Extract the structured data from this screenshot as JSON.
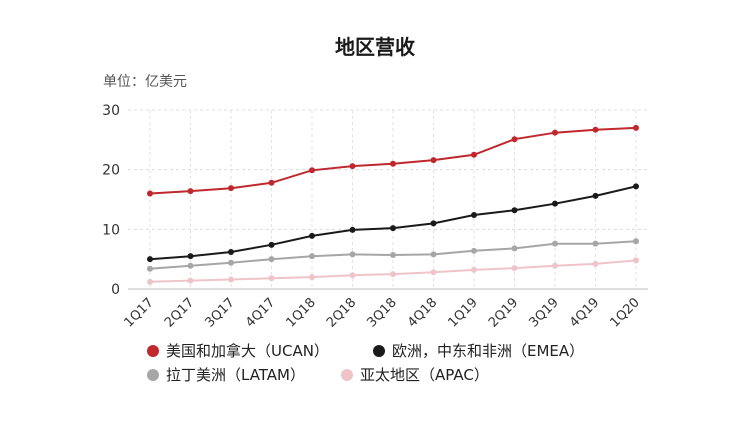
{
  "chart_data": {
    "type": "line",
    "title": "地区营收",
    "unit_label": "单位：亿美元",
    "xlabel": "",
    "ylabel": "",
    "ylim": [
      0,
      30
    ],
    "yticks": [
      0,
      10,
      20,
      30
    ],
    "grid": true,
    "legend_position": "bottom",
    "categories": [
      "1Q17",
      "2Q17",
      "3Q17",
      "4Q17",
      "1Q18",
      "2Q18",
      "3Q18",
      "4Q18",
      "1Q19",
      "2Q19",
      "3Q19",
      "4Q19",
      "1Q20"
    ],
    "series": [
      {
        "name": "美国和加拿大（UCAN）",
        "color": "#c0282d",
        "values": [
          16.0,
          16.4,
          16.9,
          17.8,
          19.9,
          20.6,
          21.0,
          21.6,
          22.5,
          25.1,
          26.2,
          26.7,
          27.0
        ]
      },
      {
        "name": "欧洲，中东和非洲（EMEA）",
        "color": "#1a1a1a",
        "values": [
          5.0,
          5.5,
          6.2,
          7.4,
          8.9,
          9.9,
          10.2,
          11.0,
          12.4,
          13.2,
          14.3,
          15.6,
          17.2
        ]
      },
      {
        "name": "拉丁美洲（LATAM）",
        "color": "#a6a6a6",
        "values": [
          3.4,
          3.9,
          4.4,
          5.0,
          5.5,
          5.8,
          5.7,
          5.8,
          6.4,
          6.8,
          7.6,
          7.6,
          8.0
        ]
      },
      {
        "name": "亚太地区（APAC）",
        "color": "#efc4c9",
        "values": [
          1.2,
          1.4,
          1.6,
          1.8,
          2.0,
          2.3,
          2.5,
          2.8,
          3.2,
          3.5,
          3.9,
          4.2,
          4.8
        ]
      }
    ]
  }
}
